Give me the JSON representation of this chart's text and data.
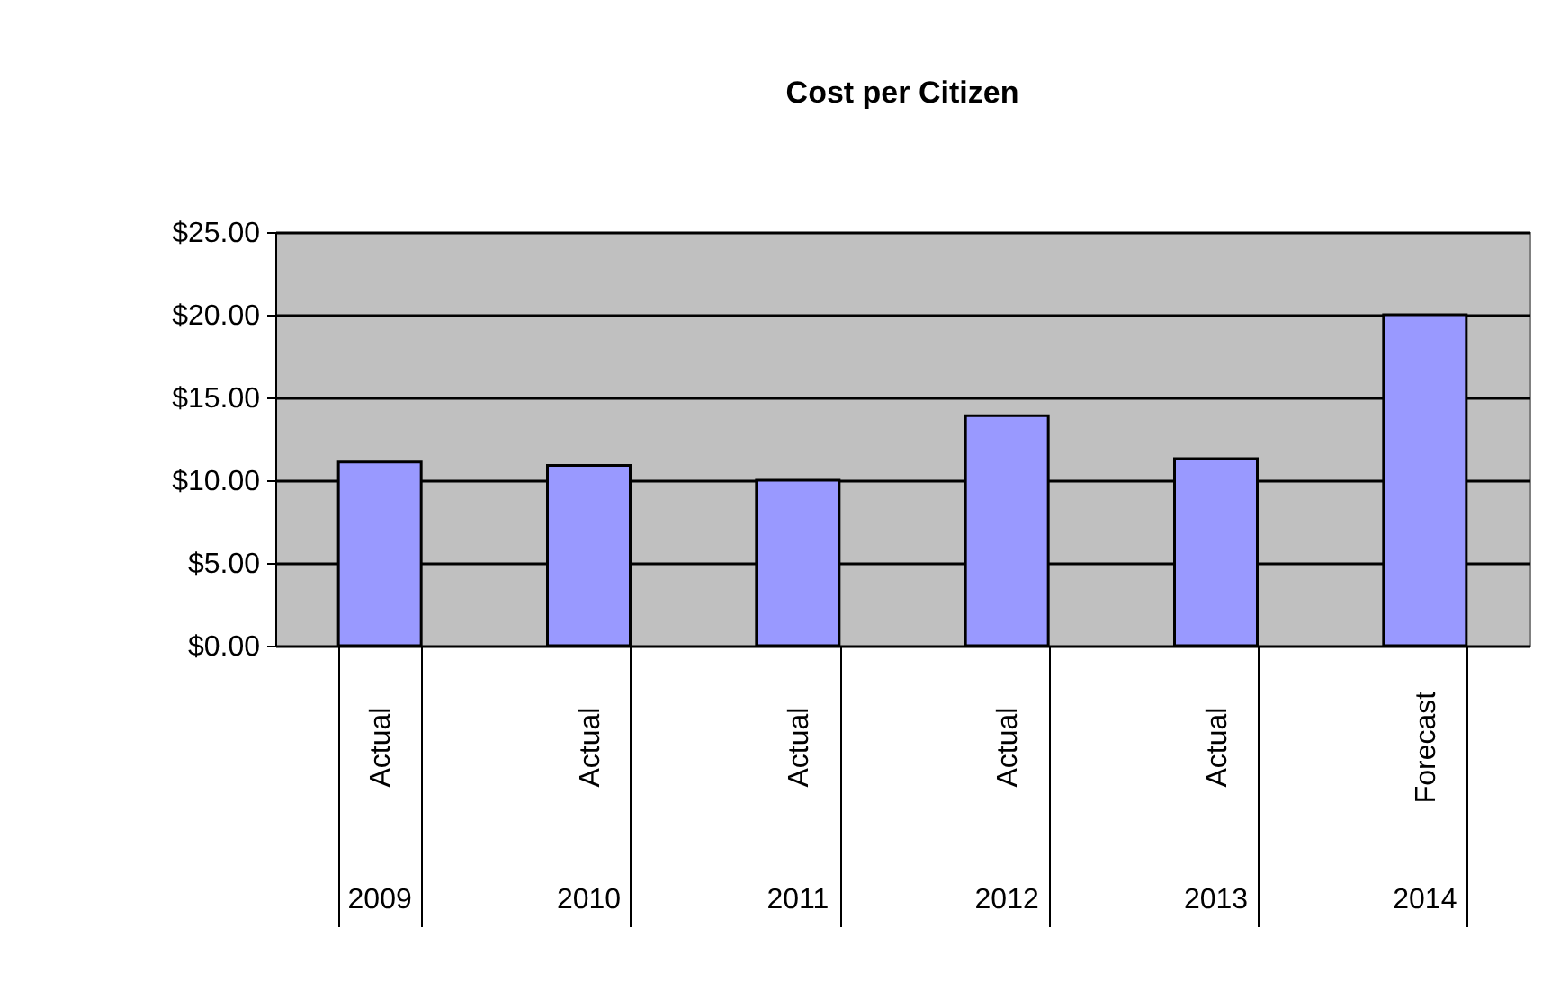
{
  "chart_data": {
    "type": "bar",
    "title": "Cost per Citizen",
    "categories": [
      "Actual",
      "Actual",
      "Actual",
      "Actual",
      "Actual",
      "Forecast"
    ],
    "series": [
      {
        "color": "#9999ff",
        "values": [
          11.1,
          10.9,
          10.0,
          13.9,
          11.3,
          20.0
        ]
      }
    ],
    "ylim": [
      0,
      25
    ],
    "yticks": [
      {
        "value": 0,
        "label": "$0.00"
      },
      {
        "value": 5,
        "label": "$5.00"
      },
      {
        "value": 10,
        "label": "$10.00"
      },
      {
        "value": 15,
        "label": "$15.00"
      },
      {
        "value": 20,
        "label": "$20.00"
      },
      {
        "value": 25,
        "label": "$25.00"
      }
    ],
    "grid": "y",
    "legend": false,
    "annotations": [
      "2009",
      "2010",
      "2011",
      "2012",
      "2013",
      "2014"
    ]
  }
}
